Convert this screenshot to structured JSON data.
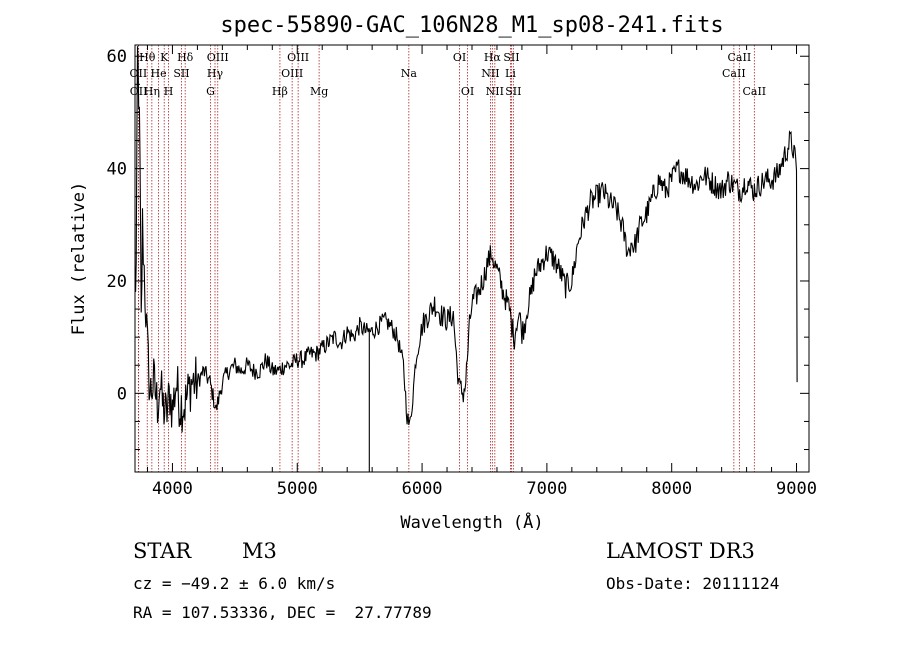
{
  "chart_data": {
    "type": "line",
    "title": "spec-55890-GAC_106N28_M1_sp08-241.fits",
    "xlabel": "Wavelength (Å)",
    "ylabel": "Flux (relative)",
    "xlim": [
      3700,
      9100
    ],
    "ylim": [
      -14,
      62
    ],
    "xticks": [
      4000,
      5000,
      6000,
      7000,
      8000,
      9000
    ],
    "xtick_labels": [
      "4000",
      "5000",
      "6000",
      "7000",
      "8000",
      "9000"
    ],
    "yticks": [
      0,
      20,
      40,
      60
    ],
    "ytick_labels": [
      "0",
      "20",
      "40",
      "60"
    ],
    "series": [
      {
        "name": "spectrum",
        "x": [
          3700,
          3710,
          3720,
          3730,
          3740,
          3750,
          3760,
          3780,
          3800,
          3820,
          3850,
          3880,
          3900,
          3920,
          3950,
          3980,
          4000,
          4030,
          4060,
          4100,
          4150,
          4200,
          4250,
          4300,
          4350,
          4400,
          4450,
          4500,
          4550,
          4600,
          4650,
          4700,
          4750,
          4800,
          4850,
          4900,
          4950,
          5000,
          5050,
          5100,
          5150,
          5200,
          5250,
          5300,
          5350,
          5400,
          5450,
          5500,
          5550,
          5580,
          5600,
          5650,
          5700,
          5750,
          5800,
          5850,
          5880,
          5900,
          5920,
          5950,
          6000,
          6050,
          6100,
          6150,
          6200,
          6250,
          6280,
          6300,
          6330,
          6350,
          6380,
          6400,
          6450,
          6500,
          6520,
          6540,
          6560,
          6580,
          6600,
          6650,
          6700,
          6720,
          6740,
          6760,
          6780,
          6800,
          6820,
          6850,
          6880,
          6900,
          6950,
          7000,
          7050,
          7100,
          7150,
          7200,
          7250,
          7300,
          7350,
          7400,
          7450,
          7500,
          7550,
          7600,
          7650,
          7680,
          7700,
          7750,
          7800,
          7850,
          7900,
          7950,
          8000,
          8050,
          8100,
          8150,
          8200,
          8250,
          8300,
          8350,
          8400,
          8450,
          8500,
          8550,
          8600,
          8650,
          8700,
          8750,
          8800,
          8850,
          8900,
          8950,
          8980,
          9000,
          9005
        ],
        "y": [
          18,
          22,
          60,
          54,
          40,
          12,
          30,
          18,
          8,
          0,
          2,
          -2,
          2,
          -2,
          -4,
          0,
          -3,
          2,
          -2,
          -2,
          2,
          2,
          4,
          2,
          -3,
          2,
          4,
          5,
          4,
          5,
          4,
          4,
          6,
          4,
          4,
          5,
          5,
          6,
          6,
          7,
          7,
          8,
          9,
          10,
          9,
          11,
          10,
          12,
          11,
          11,
          11,
          12,
          13,
          12,
          10,
          5,
          -4,
          -6,
          -2,
          6,
          12,
          14,
          16,
          14,
          13,
          14,
          5,
          1,
          0,
          2,
          12,
          16,
          18,
          21,
          23,
          24,
          25,
          23,
          22,
          18,
          15,
          12,
          10,
          13,
          14,
          11,
          12,
          16,
          18,
          21,
          23,
          25,
          24,
          22,
          19,
          20,
          27,
          31,
          34,
          35,
          36,
          34,
          33,
          30,
          25,
          27,
          26,
          30,
          32,
          35,
          38,
          36,
          38,
          40,
          39,
          38,
          37,
          39,
          38,
          37,
          36,
          38,
          37,
          36,
          38,
          36,
          37,
          38,
          38,
          39,
          42,
          45,
          43,
          39,
          2
        ]
      }
    ],
    "line_labels": [
      {
        "name": "OII",
        "wavelength": 3727,
        "row": 2
      },
      {
        "name": "OII",
        "wavelength": 3729,
        "row": 3
      },
      {
        "name": "Hθ",
        "wavelength": 3798,
        "row": 1
      },
      {
        "name": "Hη",
        "wavelength": 3835,
        "row": 3
      },
      {
        "name": "He",
        "wavelength": 3889,
        "row": 2
      },
      {
        "name": "K",
        "wavelength": 3934,
        "row": 1
      },
      {
        "name": "H",
        "wavelength": 3969,
        "row": 3
      },
      {
        "name": "SII",
        "wavelength": 4072,
        "row": 2
      },
      {
        "name": "Hδ",
        "wavelength": 4102,
        "row": 1
      },
      {
        "name": "G",
        "wavelength": 4305,
        "row": 3
      },
      {
        "name": "Hγ",
        "wavelength": 4341,
        "row": 2
      },
      {
        "name": "OIII",
        "wavelength": 4363,
        "row": 1
      },
      {
        "name": "Hβ",
        "wavelength": 4861,
        "row": 3
      },
      {
        "name": "OIII",
        "wavelength": 4959,
        "row": 2
      },
      {
        "name": "OIII",
        "wavelength": 5007,
        "row": 1
      },
      {
        "name": "Mg",
        "wavelength": 5175,
        "row": 3
      },
      {
        "name": "Na",
        "wavelength": 5894,
        "row": 2
      },
      {
        "name": "OI",
        "wavelength": 6300,
        "row": 1
      },
      {
        "name": "OI",
        "wavelength": 6364,
        "row": 3
      },
      {
        "name": "NII",
        "wavelength": 6548,
        "row": 2
      },
      {
        "name": "Hα",
        "wavelength": 6563,
        "row": 1
      },
      {
        "name": "NII",
        "wavelength": 6583,
        "row": 3
      },
      {
        "name": "SII",
        "wavelength": 6716,
        "row": 1
      },
      {
        "name": "Li",
        "wavelength": 6708,
        "row": 2
      },
      {
        "name": "SII",
        "wavelength": 6731,
        "row": 3
      },
      {
        "name": "CaII",
        "wavelength": 8498,
        "row": 2
      },
      {
        "name": "CaII",
        "wavelength": 8542,
        "row": 1
      },
      {
        "name": "CaII",
        "wavelength": 8662,
        "row": 3
      }
    ]
  },
  "info": {
    "class": "STAR",
    "subclass": "M3",
    "survey": "LAMOST DR3",
    "cz": "cz = −49.2 ± 6.0 km/s",
    "obs_date": "Obs-Date: 20111124",
    "coords": "RA = 107.53336, DEC =  27.77789"
  },
  "colors": {
    "spectrum": "#000000",
    "line_marker": "#b22222"
  }
}
